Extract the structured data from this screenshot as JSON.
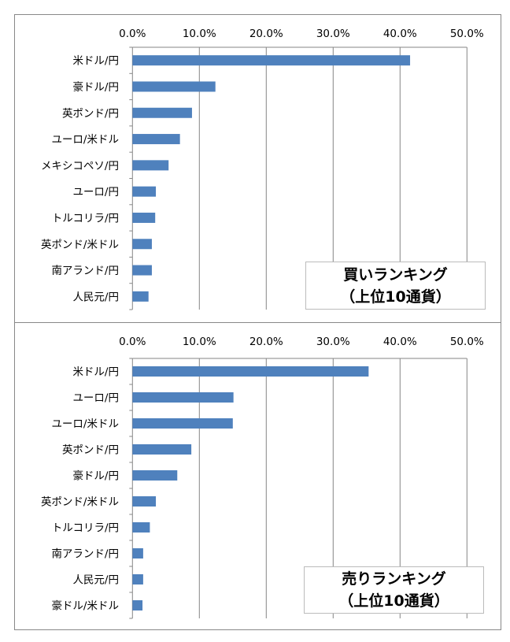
{
  "colors": {
    "bar": "#4f81bd",
    "grid": "#868686"
  },
  "chart_data": [
    {
      "type": "bar",
      "orientation": "horizontal",
      "legend": {
        "line1": "買いランキング",
        "line2": "（上位10通貨）"
      },
      "xlim": [
        0,
        50
      ],
      "tick_labels": [
        "0.0%",
        "10.0%",
        "20.0%",
        "30.0%",
        "40.0%",
        "50.0%"
      ],
      "grid": true,
      "categories": [
        "米ドル/円",
        "豪ドル/円",
        "英ポンド/円",
        "ユーロ/米ドル",
        "メキシコペソ/円",
        "ユーロ/円",
        "トルコリラ/円",
        "英ポンド/米ドル",
        "南アランド/円",
        "人民元/円"
      ],
      "values": [
        41.5,
        12.4,
        8.9,
        7.1,
        5.4,
        3.5,
        3.4,
        2.9,
        2.9,
        2.4
      ]
    },
    {
      "type": "bar",
      "orientation": "horizontal",
      "legend": {
        "line1": "売りランキング",
        "line2": "（上位10通貨）"
      },
      "xlim": [
        0,
        50
      ],
      "tick_labels": [
        "0.0%",
        "10.0%",
        "20.0%",
        "30.0%",
        "40.0%",
        "50.0%"
      ],
      "grid": true,
      "categories": [
        "米ドル/円",
        "ユーロ/円",
        "ユーロ/米ドル",
        "英ポンド/円",
        "豪ドル/円",
        "英ポンド/米ドル",
        "トルコリラ/円",
        "南アランド/円",
        "人民元/円",
        "豪ドル/米ドル"
      ],
      "values": [
        35.3,
        15.1,
        15.0,
        8.8,
        6.7,
        3.5,
        2.6,
        1.6,
        1.6,
        1.5
      ]
    }
  ]
}
